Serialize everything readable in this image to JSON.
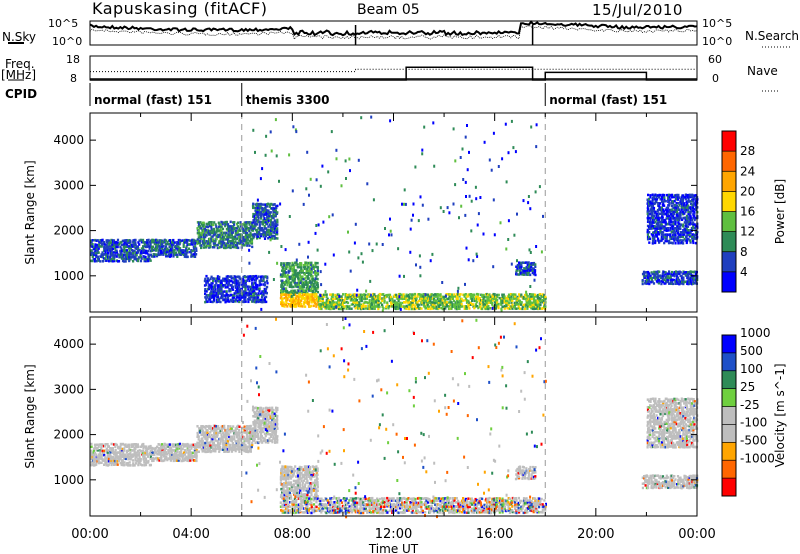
{
  "header": {
    "site": "Kapuskasing (fitACF)",
    "beam": "Beam 05",
    "date": "15/Jul/2010"
  },
  "side_labels": {
    "nsky": "N.Sky",
    "freq": "Freq.",
    "freq_unit": "[MHz]",
    "cpid": "CPID",
    "nsearch": "N.Search",
    "nave": "Nave"
  },
  "noise_panel": {
    "y_ticks_left": [
      "10^5",
      "10^0"
    ],
    "y_ticks_right": [
      "10^5",
      "10^0"
    ]
  },
  "freq_panel": {
    "y_ticks_left": [
      "18",
      "8"
    ],
    "y_ticks_right": [
      "60",
      "0"
    ],
    "freq_mhz_profile": [
      {
        "t": 0,
        "v": 11
      },
      {
        "t": 24,
        "v": 11
      }
    ],
    "nave_profile": [
      {
        "t": 0,
        "v": 21
      },
      {
        "t": 10.5,
        "v": 21
      },
      {
        "t": 10.5,
        "v": 27
      },
      {
        "t": 24,
        "v": 27
      }
    ],
    "nave_step": [
      {
        "t": 0,
        "v": 0
      },
      {
        "t": 12.5,
        "v": 0
      },
      {
        "t": 12.5,
        "v": 32
      },
      {
        "t": 17.5,
        "v": 32
      },
      {
        "t": 17.5,
        "v": 0
      },
      {
        "t": 18,
        "v": 0
      },
      {
        "t": 18,
        "v": 19
      },
      {
        "t": 22,
        "v": 19
      },
      {
        "t": 22,
        "v": 0
      },
      {
        "t": 24,
        "v": 0
      }
    ]
  },
  "cpid_segments": [
    {
      "label": "normal (fast) 151",
      "start": 0
    },
    {
      "label": "themis 3300",
      "start": 6
    },
    {
      "label": "normal (fast) 151",
      "start": 18
    }
  ],
  "chart_data": [
    {
      "type": "heatmap",
      "title": "Power",
      "xlabel": "Time UT",
      "ylabel": "Slant Range [km]",
      "xlim": [
        0,
        24
      ],
      "ylim": [
        200,
        4600
      ],
      "x_tick_labels": [
        "00:00",
        "04:00",
        "08:00",
        "12:00",
        "16:00",
        "20:00",
        "00:00"
      ],
      "y_ticks": [
        1000,
        2000,
        3000,
        4000
      ],
      "colorbar": {
        "label": "Power [dB]",
        "ticks": [
          4,
          8,
          12,
          16,
          20,
          24,
          28
        ],
        "range": [
          0,
          32
        ]
      },
      "regions": [
        {
          "t": [
            0.0,
            2.4
          ],
          "r": [
            1300,
            1800
          ],
          "level": 6
        },
        {
          "t": [
            2.4,
            4.2
          ],
          "r": [
            1400,
            1800
          ],
          "level": 7
        },
        {
          "t": [
            4.2,
            6.4
          ],
          "r": [
            1600,
            2200
          ],
          "level": 9
        },
        {
          "t": [
            6.4,
            7.4
          ],
          "r": [
            1800,
            2600
          ],
          "level": 7
        },
        {
          "t": [
            4.5,
            7.0
          ],
          "r": [
            400,
            1000
          ],
          "level": 5
        },
        {
          "t": [
            7.5,
            9.0
          ],
          "r": [
            600,
            1300
          ],
          "level": 11
        },
        {
          "t": [
            7.5,
            9.0
          ],
          "r": [
            300,
            600
          ],
          "level": 20
        },
        {
          "t": [
            9.0,
            18.0
          ],
          "r": [
            250,
            600
          ],
          "level": 14
        },
        {
          "t": [
            16.8,
            17.6
          ],
          "r": [
            1000,
            1300
          ],
          "level": 6
        },
        {
          "t": [
            21.8,
            24.0
          ],
          "r": [
            800,
            1100
          ],
          "level": 6
        },
        {
          "t": [
            22.0,
            24.0
          ],
          "r": [
            1700,
            2800
          ],
          "level": 5
        }
      ],
      "dashed_lines_t": [
        6,
        18
      ]
    },
    {
      "type": "heatmap",
      "title": "Velocity",
      "xlabel": "Time UT",
      "ylabel": "Slant Range [km]",
      "xlim": [
        0,
        24
      ],
      "ylim": [
        200,
        4600
      ],
      "x_tick_labels": [
        "00:00",
        "04:00",
        "08:00",
        "12:00",
        "16:00",
        "20:00",
        "00:00"
      ],
      "y_ticks": [
        1000,
        2000,
        3000,
        4000
      ],
      "colorbar": {
        "label": "Velocity [m s^-1]",
        "ticks": [
          "1000",
          "500",
          "100",
          "25",
          "-25",
          "-100",
          "-500",
          "-1000"
        ]
      },
      "regions": [
        {
          "t": [
            0.0,
            2.4
          ],
          "r": [
            1300,
            1800
          ],
          "class": "ground"
        },
        {
          "t": [
            2.4,
            4.2
          ],
          "r": [
            1400,
            1800
          ],
          "class": "ground"
        },
        {
          "t": [
            4.2,
            6.4
          ],
          "r": [
            1600,
            2200
          ],
          "class": "ground"
        },
        {
          "t": [
            6.4,
            7.4
          ],
          "r": [
            1800,
            2600
          ],
          "class": "ground"
        },
        {
          "t": [
            7.5,
            9.0
          ],
          "r": [
            600,
            1300
          ],
          "class": "ground"
        },
        {
          "t": [
            7.5,
            18.0
          ],
          "r": [
            250,
            600
          ],
          "class": "mixed"
        },
        {
          "t": [
            16.8,
            17.6
          ],
          "r": [
            1000,
            1300
          ],
          "class": "ground"
        },
        {
          "t": [
            21.8,
            24.0
          ],
          "r": [
            800,
            1100
          ],
          "class": "ground"
        },
        {
          "t": [
            22.0,
            24.0
          ],
          "r": [
            1700,
            2800
          ],
          "class": "ground"
        }
      ],
      "dashed_lines_t": [
        6,
        18
      ]
    }
  ],
  "colors": {
    "power_scale": [
      "#0000ff",
      "#1f3fbf",
      "#2e8b57",
      "#5fbf3f",
      "#ffd700",
      "#ffa500",
      "#ff6600",
      "#ff0000"
    ],
    "velocity_scale": [
      "#0000ff",
      "#1e50c8",
      "#2e8b57",
      "#6fcf3f",
      "#bebebe",
      "#bebebe",
      "#ffa500",
      "#ff6600",
      "#ff0000"
    ],
    "ground_scatter": "#bebebe"
  }
}
